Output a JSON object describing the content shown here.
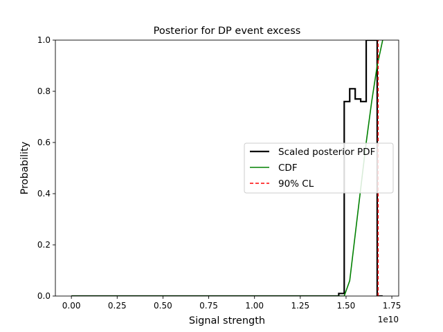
{
  "chart_data": {
    "type": "line",
    "title": "Posterior for DP event excess",
    "xlabel": "Signal strength",
    "ylabel": "Probability",
    "x_offset_label": "1e10",
    "xlim": [
      -0.0875,
      1.7875
    ],
    "ylim": [
      0,
      1
    ],
    "x_unit_scale": 10000000000,
    "xticks": [
      0.0,
      0.25,
      0.5,
      0.75,
      1.0,
      1.25,
      1.5,
      1.75
    ],
    "xtick_labels": [
      "0.00",
      "0.25",
      "0.50",
      "0.75",
      "1.00",
      "1.25",
      "1.50",
      "1.75"
    ],
    "yticks": [
      0.0,
      0.2,
      0.4,
      0.6,
      0.8,
      1.0
    ],
    "ytick_labels": [
      "0.0",
      "0.2",
      "0.4",
      "0.6",
      "0.8",
      "1.0"
    ],
    "legend_position": "center-right",
    "series": [
      {
        "name": "Scaled posterior PDF",
        "style": "step",
        "color": "#000000",
        "x": [
          0.0,
          1.46,
          1.46,
          1.49,
          1.49,
          1.52,
          1.52,
          1.55,
          1.55,
          1.58,
          1.58,
          1.61,
          1.61,
          1.64,
          1.64,
          1.67,
          1.67,
          1.7
        ],
        "y": [
          0.0,
          0.0,
          0.01,
          0.01,
          0.76,
          0.76,
          0.81,
          0.81,
          0.77,
          0.77,
          0.76,
          0.76,
          1.0,
          1.0,
          1.0,
          1.0,
          0.0,
          0.0
        ]
      },
      {
        "name": "CDF",
        "style": "line",
        "color": "#008000",
        "x": [
          0.0,
          1.49,
          1.52,
          1.55,
          1.58,
          1.61,
          1.64,
          1.67,
          1.7
        ],
        "y": [
          0.0,
          0.0,
          0.06,
          0.24,
          0.42,
          0.6,
          0.76,
          0.9,
          1.0
        ]
      },
      {
        "name": "90% CL",
        "style": "vline-dashed",
        "color": "#ff0000",
        "x": 1.675
      }
    ]
  }
}
